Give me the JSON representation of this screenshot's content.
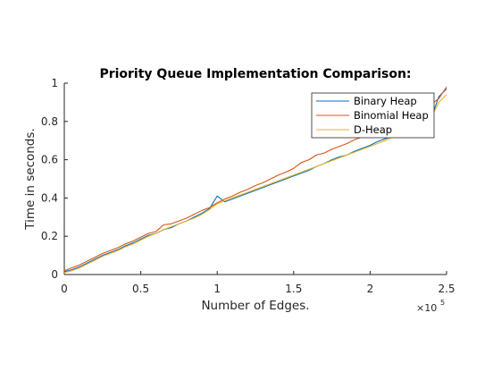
{
  "chart_data": {
    "type": "line",
    "title": "Priority Queue Implementation Comparison:",
    "xlabel": "Number of Edges.",
    "ylabel": "Time in seconds.",
    "x_exponent_base": "×10",
    "x_exponent_power": "5",
    "xlim": [
      0,
      2.5
    ],
    "ylim": [
      0,
      1
    ],
    "x_ticks": [
      0,
      0.5,
      1,
      1.5,
      2,
      2.5
    ],
    "x_tick_labels": [
      "0",
      "0.5",
      "1",
      "1.5",
      "2",
      "2.5"
    ],
    "y_ticks": [
      0,
      0.2,
      0.4,
      0.6,
      0.8,
      1
    ],
    "y_tick_labels": [
      "0",
      "0.2",
      "0.4",
      "0.6",
      "0.8",
      "1"
    ],
    "grid": false,
    "legend_position": "top-right",
    "series": [
      {
        "name": "Binary Heap",
        "color": "#0072BD",
        "x": [
          0,
          0.05,
          0.1,
          0.15,
          0.2,
          0.25,
          0.3,
          0.35,
          0.4,
          0.45,
          0.5,
          0.55,
          0.6,
          0.65,
          0.7,
          0.75,
          0.8,
          0.85,
          0.9,
          0.95,
          1.0,
          1.05,
          1.1,
          1.15,
          1.2,
          1.25,
          1.3,
          1.35,
          1.4,
          1.45,
          1.5,
          1.55,
          1.6,
          1.65,
          1.7,
          1.75,
          1.8,
          1.85,
          1.9,
          1.95,
          2.0,
          2.05,
          2.1,
          2.15,
          2.2,
          2.25,
          2.3,
          2.35,
          2.4,
          2.45,
          2.5
        ],
        "values": [
          0.015,
          0.025,
          0.04,
          0.06,
          0.08,
          0.1,
          0.115,
          0.13,
          0.15,
          0.165,
          0.185,
          0.205,
          0.215,
          0.235,
          0.245,
          0.265,
          0.28,
          0.3,
          0.32,
          0.345,
          0.41,
          0.38,
          0.395,
          0.41,
          0.425,
          0.44,
          0.455,
          0.47,
          0.485,
          0.5,
          0.515,
          0.53,
          0.545,
          0.565,
          0.58,
          0.6,
          0.615,
          0.625,
          0.645,
          0.66,
          0.675,
          0.695,
          0.71,
          0.725,
          0.745,
          0.76,
          0.78,
          0.8,
          0.82,
          0.93,
          0.97
        ]
      },
      {
        "name": "Binomial Heap",
        "color": "#D95319",
        "x": [
          0,
          0.05,
          0.1,
          0.15,
          0.2,
          0.25,
          0.3,
          0.35,
          0.4,
          0.45,
          0.5,
          0.55,
          0.6,
          0.65,
          0.7,
          0.75,
          0.8,
          0.85,
          0.9,
          0.95,
          1.0,
          1.05,
          1.1,
          1.15,
          1.2,
          1.25,
          1.3,
          1.35,
          1.4,
          1.45,
          1.5,
          1.55,
          1.6,
          1.65,
          1.7,
          1.75,
          1.8,
          1.85,
          1.9,
          1.95,
          2.0,
          2.05,
          2.1,
          2.15,
          2.2,
          2.25,
          2.3,
          2.35,
          2.4,
          2.45,
          2.5
        ],
        "values": [
          0.02,
          0.035,
          0.05,
          0.07,
          0.09,
          0.11,
          0.125,
          0.14,
          0.16,
          0.175,
          0.195,
          0.215,
          0.225,
          0.26,
          0.265,
          0.28,
          0.295,
          0.315,
          0.335,
          0.35,
          0.375,
          0.395,
          0.41,
          0.43,
          0.445,
          0.465,
          0.48,
          0.5,
          0.52,
          0.535,
          0.555,
          0.585,
          0.6,
          0.625,
          0.635,
          0.655,
          0.67,
          0.685,
          0.705,
          0.72,
          0.735,
          0.755,
          0.775,
          0.79,
          0.81,
          0.83,
          0.85,
          0.87,
          0.89,
          0.92,
          0.98
        ]
      },
      {
        "name": "D-Heap",
        "color": "#EDB120",
        "x": [
          0,
          0.05,
          0.1,
          0.15,
          0.2,
          0.25,
          0.3,
          0.35,
          0.4,
          0.45,
          0.5,
          0.55,
          0.6,
          0.65,
          0.7,
          0.75,
          0.8,
          0.85,
          0.9,
          0.95,
          1.0,
          1.05,
          1.1,
          1.15,
          1.2,
          1.25,
          1.3,
          1.35,
          1.4,
          1.45,
          1.5,
          1.55,
          1.6,
          1.65,
          1.7,
          1.75,
          1.8,
          1.85,
          1.9,
          1.95,
          2.0,
          2.05,
          2.1,
          2.15,
          2.2,
          2.25,
          2.3,
          2.35,
          2.4,
          2.45,
          2.5
        ],
        "values": [
          0.01,
          0.02,
          0.035,
          0.055,
          0.075,
          0.095,
          0.11,
          0.125,
          0.145,
          0.16,
          0.18,
          0.2,
          0.215,
          0.235,
          0.25,
          0.265,
          0.28,
          0.295,
          0.315,
          0.34,
          0.37,
          0.385,
          0.4,
          0.415,
          0.43,
          0.445,
          0.46,
          0.475,
          0.49,
          0.505,
          0.52,
          0.535,
          0.55,
          0.565,
          0.58,
          0.595,
          0.61,
          0.625,
          0.64,
          0.655,
          0.67,
          0.685,
          0.7,
          0.72,
          0.74,
          0.76,
          0.78,
          0.8,
          0.82,
          0.9,
          0.94
        ]
      }
    ]
  }
}
